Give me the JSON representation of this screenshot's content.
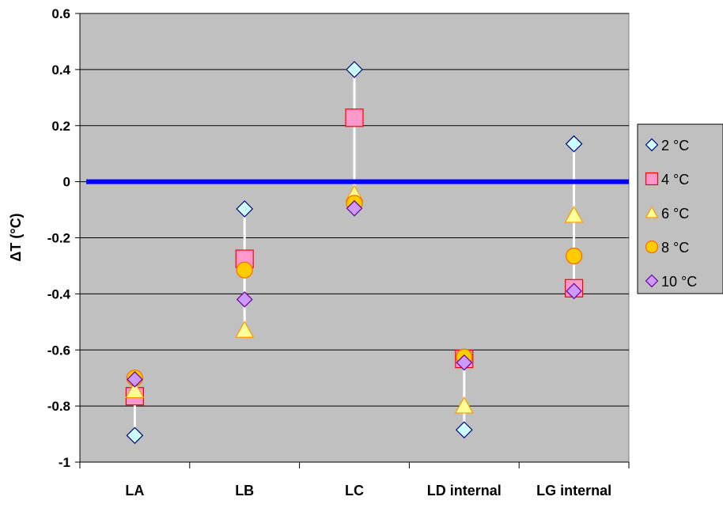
{
  "chart_data": {
    "type": "scatter",
    "title": "",
    "xlabel": "",
    "ylabel": "ΔT (°C)",
    "categories": [
      "LA",
      "LB",
      "LC",
      "LD internal",
      "LG internal"
    ],
    "ylim": [
      -1,
      0.6
    ],
    "yticks": [
      {
        "value": 0.6,
        "label": "0.6"
      },
      {
        "value": 0.4,
        "label": "0.4"
      },
      {
        "value": 0.2,
        "label": "0.2"
      },
      {
        "value": 0,
        "label": "0"
      },
      {
        "value": -0.2,
        "label": "-0.2"
      },
      {
        "value": -0.4,
        "label": "-0.4"
      },
      {
        "value": -0.6,
        "label": "-0.6"
      },
      {
        "value": -0.8,
        "label": "-0.8"
      },
      {
        "value": -1,
        "label": "-1"
      }
    ],
    "grid": true,
    "zero_line": true,
    "legend_position": "right",
    "series": [
      {
        "name": "2 °C",
        "marker": "diamond",
        "fill": "#ccffff",
        "stroke": "#000080",
        "values": [
          -0.905,
          -0.097,
          0.4,
          -0.885,
          0.135
        ]
      },
      {
        "name": "4 °C",
        "marker": "square",
        "fill": "#ff99cc",
        "stroke": "#ff0000",
        "values": [
          -0.765,
          -0.275,
          0.228,
          -0.632,
          -0.38
        ]
      },
      {
        "name": "6 °C",
        "marker": "triangle",
        "fill": "#ffff99",
        "stroke": "#ff9900",
        "values": [
          -0.745,
          -0.53,
          -0.045,
          -0.8,
          -0.12
        ]
      },
      {
        "name": "8 °C",
        "marker": "circle",
        "fill": "#ffcc00",
        "stroke": "#ff6600",
        "values": [
          -0.7,
          -0.315,
          -0.077,
          -0.625,
          -0.265
        ]
      },
      {
        "name": "10 °C",
        "marker": "diamond",
        "fill": "#cc99ff",
        "stroke": "#660099",
        "values": [
          -0.705,
          -0.42,
          -0.095,
          -0.645,
          -0.39
        ]
      }
    ],
    "colors": {
      "plot_background": "#c0c0c0",
      "gridline": "#000000",
      "zero_line": "#0000ff",
      "range_bar": "#ffffff"
    }
  }
}
